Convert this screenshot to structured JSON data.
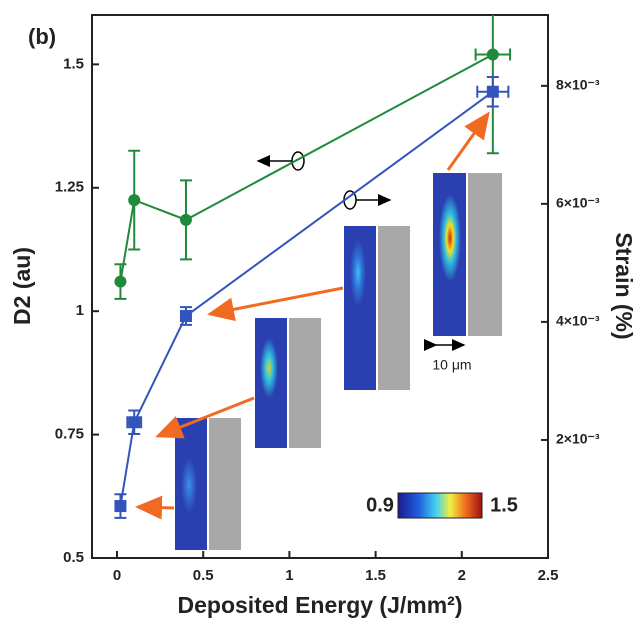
{
  "chart_data": {
    "type": "line",
    "annotation": "(b)",
    "xlabel": "Deposited Energy (J/mm²)",
    "ylabel": "D2 (au)",
    "y2label": "Strain (%)",
    "xlim": [
      -0.145,
      2.5
    ],
    "xticks": [
      0,
      0.5,
      1,
      1.5,
      2,
      2.5
    ],
    "ylim": [
      0.5,
      1.6
    ],
    "yticks": [
      0.5,
      0.75,
      1,
      1.25,
      1.5
    ],
    "y2lim": [
      0,
      0.0092
    ],
    "y2ticks": [
      {
        "value": 0.002,
        "label": "2×10⁻³"
      },
      {
        "value": 0.004,
        "label": "4×10⁻³"
      },
      {
        "value": 0.006,
        "label": "6×10⁻³"
      },
      {
        "value": 0.008,
        "label": "8×10⁻³"
      }
    ],
    "x": [
      0.02,
      0.1,
      0.4,
      2.18
    ],
    "series": [
      {
        "color": "#1f8a3c",
        "marker": "circle",
        "values": [
          1.06,
          1.225,
          1.185,
          1.52
        ],
        "errors": [
          0.035,
          0.1,
          0.08,
          0.2
        ],
        "xerrors": [
          0,
          0,
          0,
          0.1
        ]
      },
      {
        "color": "#3355bb",
        "marker": "square",
        "axis": "y2",
        "values": [
          0.00088,
          0.0023,
          0.0041,
          0.0079
        ],
        "errors": [
          0.0002,
          0.0002,
          0.00015,
          0.00025
        ],
        "xerrors": [
          0,
          0.04,
          0,
          0.09
        ]
      }
    ],
    "scale_bar": "10 μm",
    "colorbar": {
      "min": 0.9,
      "max": 1.5
    }
  }
}
